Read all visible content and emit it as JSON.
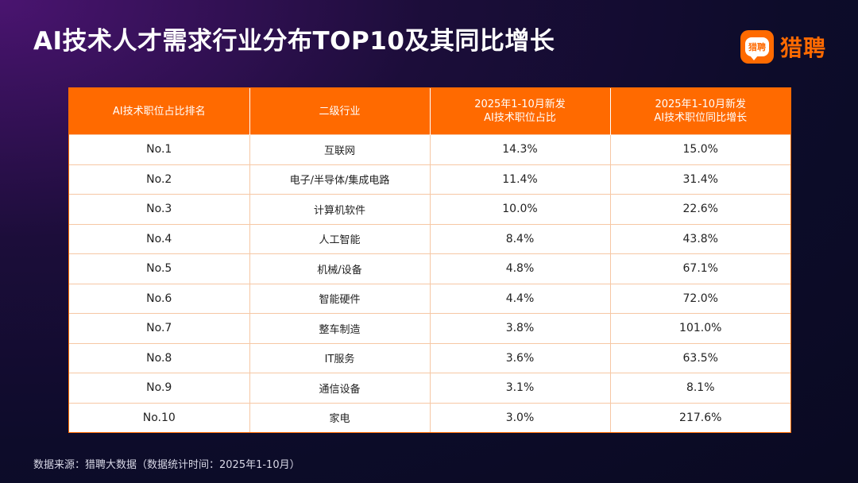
{
  "title": "AI技术人才需求行业分布TOP10及其同比增长",
  "brand": {
    "badge_text": "猎聘",
    "name": "猎聘",
    "color": "#ff6a00"
  },
  "table": {
    "headers": [
      "AI技术职位占比排名",
      "二级行业",
      "2025年1-10月新发\nAI技术职位占比",
      "2025年1-10月新发\nAI技术职位同比增长"
    ],
    "rows": [
      {
        "rank": "No.1",
        "industry": "互联网",
        "share": "14.3%",
        "growth": "15.0%"
      },
      {
        "rank": "No.2",
        "industry": "电子/半导体/集成电路",
        "share": "11.4%",
        "growth": "31.4%"
      },
      {
        "rank": "No.3",
        "industry": "计算机软件",
        "share": "10.0%",
        "growth": "22.6%"
      },
      {
        "rank": "No.4",
        "industry": "人工智能",
        "share": "8.4%",
        "growth": "43.8%"
      },
      {
        "rank": "No.5",
        "industry": "机械/设备",
        "share": "4.8%",
        "growth": "67.1%"
      },
      {
        "rank": "No.6",
        "industry": "智能硬件",
        "share": "4.4%",
        "growth": "72.0%"
      },
      {
        "rank": "No.7",
        "industry": "整车制造",
        "share": "3.8%",
        "growth": "101.0%"
      },
      {
        "rank": "No.8",
        "industry": "IT服务",
        "share": "3.6%",
        "growth": "63.5%"
      },
      {
        "rank": "No.9",
        "industry": "通信设备",
        "share": "3.1%",
        "growth": "8.1%"
      },
      {
        "rank": "No.10",
        "industry": "家电",
        "share": "3.0%",
        "growth": "217.6%"
      }
    ]
  },
  "source": "数据来源：猎聘大数据（数据统计时间：2025年1-10月）"
}
